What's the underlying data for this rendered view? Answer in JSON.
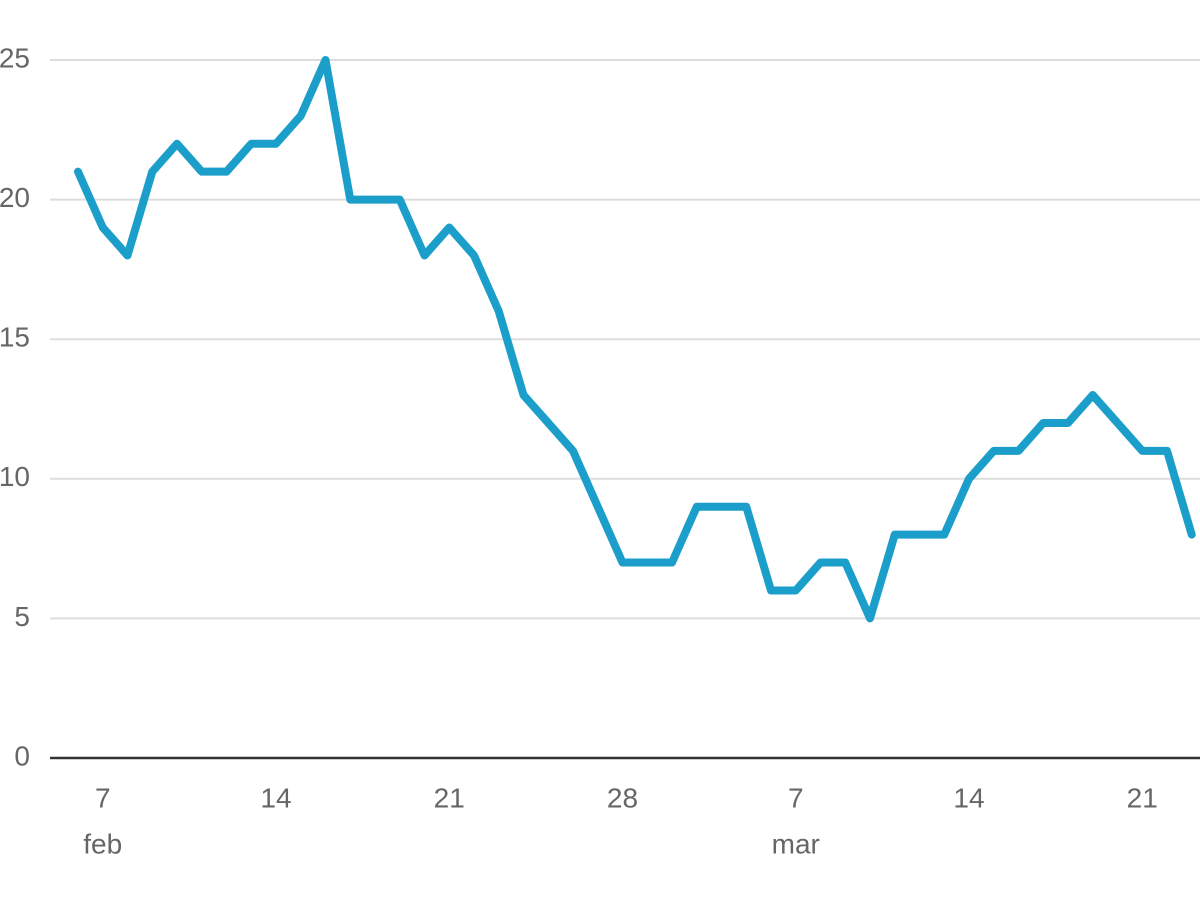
{
  "chart_data": {
    "type": "line",
    "x": [
      "feb 6",
      "feb 7",
      "feb 8",
      "feb 9",
      "feb 10",
      "feb 11",
      "feb 12",
      "feb 13",
      "feb 14",
      "feb 15",
      "feb 16",
      "feb 17",
      "feb 18",
      "feb 19",
      "feb 20",
      "feb 21",
      "feb 22",
      "feb 23",
      "feb 24",
      "feb 25",
      "feb 26",
      "feb 27",
      "feb 28",
      "mar 1",
      "mar 2",
      "mar 3",
      "mar 4",
      "mar 5",
      "mar 6",
      "mar 7",
      "mar 8",
      "mar 9",
      "mar 10",
      "mar 11",
      "mar 12",
      "mar 13",
      "mar 14",
      "mar 15",
      "mar 16",
      "mar 17",
      "mar 18",
      "mar 19",
      "mar 20",
      "mar 21",
      "mar 22",
      "mar 23"
    ],
    "values": [
      21,
      19,
      18,
      21,
      22,
      21,
      21,
      22,
      22,
      23,
      25,
      20,
      20,
      20,
      18,
      19,
      18,
      16,
      13,
      12,
      11,
      9,
      7,
      7,
      7,
      9,
      9,
      9,
      6,
      6,
      7,
      7,
      5,
      8,
      8,
      8,
      10,
      11,
      11,
      12,
      12,
      13,
      12,
      11,
      11,
      8
    ],
    "color": "#1b9fca",
    "ylim": [
      0,
      25
    ],
    "yticks": [
      0,
      5,
      10,
      15,
      20,
      25
    ],
    "grid": true,
    "xticks": [
      {
        "value": "feb 7",
        "label": "7"
      },
      {
        "value": "feb 14",
        "label": "14"
      },
      {
        "value": "feb 21",
        "label": "21"
      },
      {
        "value": "feb 28",
        "label": "28"
      },
      {
        "value": "mar 7",
        "label": "7"
      },
      {
        "value": "mar 14",
        "label": "14"
      },
      {
        "value": "mar 21",
        "label": "21"
      }
    ],
    "month_labels": [
      {
        "value": "feb 7",
        "label": "feb"
      },
      {
        "value": "mar 7",
        "label": "mar"
      }
    ]
  }
}
